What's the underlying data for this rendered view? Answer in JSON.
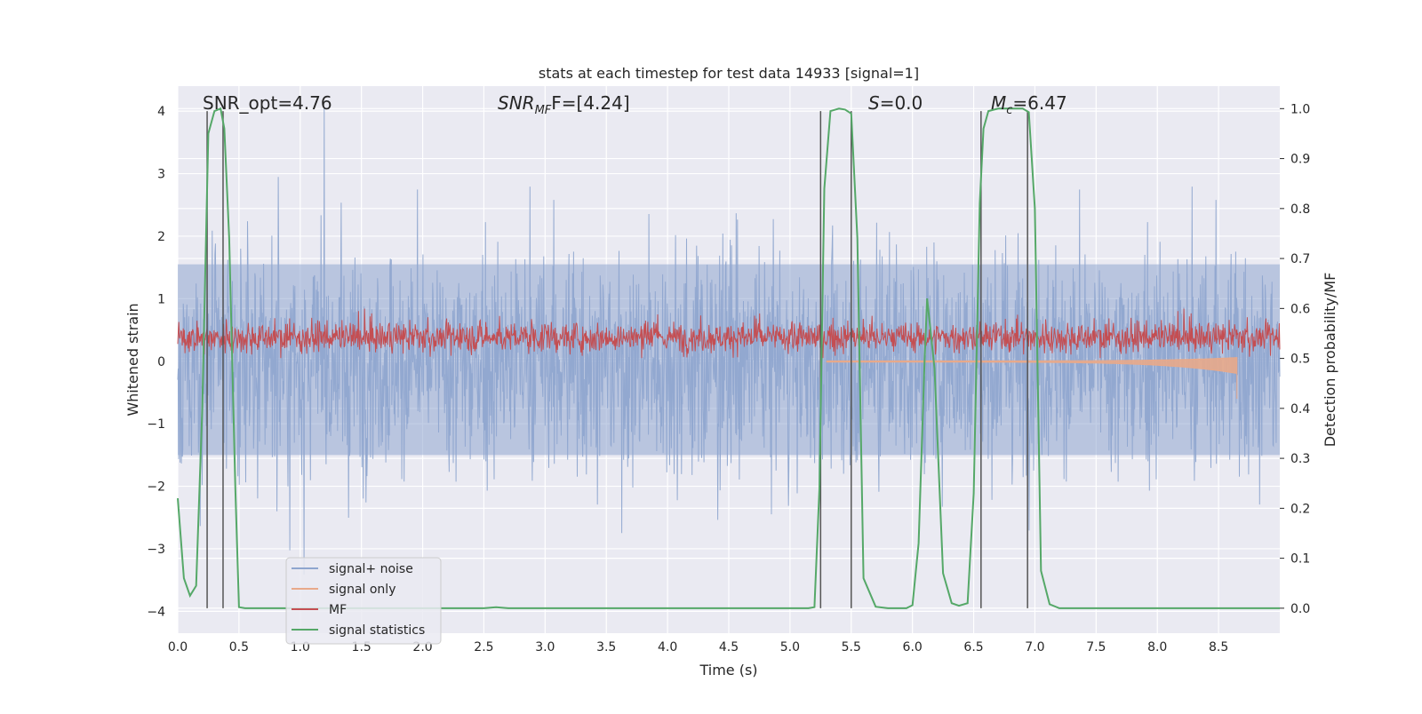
{
  "chart_data": {
    "type": "line",
    "title": "stats at each timestep for test data 14933 [signal=1]",
    "xlabel": "Time (s)",
    "ylabel": "Whitened strain",
    "ylabel_right": "Detection probability/MF",
    "xlim": [
      0.0,
      9.0
    ],
    "ylim": [
      -4.35,
      4.4
    ],
    "ylim_right": [
      -0.05,
      1.045
    ],
    "x_ticks": [
      "0.0",
      "0.5",
      "1.0",
      "1.5",
      "2.0",
      "2.5",
      "3.0",
      "3.5",
      "4.0",
      "4.5",
      "5.0",
      "5.5",
      "6.0",
      "6.5",
      "7.0",
      "7.5",
      "8.0",
      "8.5"
    ],
    "y_ticks": [
      "4",
      "3",
      "2",
      "1",
      "0",
      "−1",
      "−2",
      "−3",
      "−4"
    ],
    "y_ticks_right": [
      "1.0",
      "0.9",
      "0.8",
      "0.7",
      "0.6",
      "0.5",
      "0.4",
      "0.3",
      "0.2",
      "0.1",
      "0.0"
    ],
    "annotations": {
      "snr_opt": "SNR_opt=4.76",
      "snr_mf_main": "SNR",
      "snr_mf_sub": "MF",
      "snr_mf_rest": "F=[4.24]",
      "s_main": "S",
      "s_rest": "=0.0",
      "mc_main": "M",
      "mc_sub": "c",
      "mc_rest": "=6.47"
    },
    "legend": [
      {
        "name": "signal+ noise",
        "color": "#8fa6cf"
      },
      {
        "name": "signal only",
        "color": "#e8a98a"
      },
      {
        "name": "MF",
        "color": "#c44e52"
      },
      {
        "name": "signal statistics",
        "color": "#55a868"
      }
    ],
    "series": [
      {
        "name": "signal statistics",
        "axis": "right",
        "x": [
          0.0,
          0.05,
          0.1,
          0.15,
          0.2,
          0.25,
          0.3,
          0.35,
          0.38,
          0.42,
          0.47,
          0.5,
          0.55,
          0.6,
          0.7,
          1.0,
          2.0,
          2.5,
          2.6,
          2.7,
          3.0,
          4.0,
          5.0,
          5.15,
          5.2,
          5.24,
          5.28,
          5.33,
          5.4,
          5.45,
          5.5,
          5.55,
          5.6,
          5.7,
          5.8,
          5.9,
          5.95,
          6.0,
          6.05,
          6.1,
          6.12,
          6.18,
          6.25,
          6.32,
          6.38,
          6.45,
          6.5,
          6.55,
          6.58,
          6.62,
          6.7,
          6.8,
          6.9,
          6.95,
          7.0,
          7.05,
          7.12,
          7.2,
          8.0,
          9.0
        ],
        "y": [
          0.22,
          0.06,
          0.025,
          0.045,
          0.4,
          0.95,
          0.995,
          1.0,
          0.96,
          0.74,
          0.24,
          0.002,
          0.0,
          0.0,
          0.0,
          0.0,
          0.0,
          0.0,
          0.002,
          0.0,
          0.0,
          0.0,
          0.0,
          0.0,
          0.002,
          0.24,
          0.84,
          0.995,
          1.0,
          0.998,
          0.99,
          0.74,
          0.06,
          0.003,
          0.0,
          0.0,
          0.0,
          0.006,
          0.13,
          0.5,
          0.62,
          0.48,
          0.07,
          0.01,
          0.005,
          0.01,
          0.23,
          0.81,
          0.96,
          0.995,
          1.0,
          1.0,
          1.0,
          0.993,
          0.8,
          0.075,
          0.008,
          0.0,
          0.0,
          0.0
        ]
      },
      {
        "name": "vertical markers",
        "axis": "left",
        "x": [
          0.24,
          0.37,
          5.25,
          5.5,
          6.56,
          6.94
        ]
      }
    ]
  }
}
